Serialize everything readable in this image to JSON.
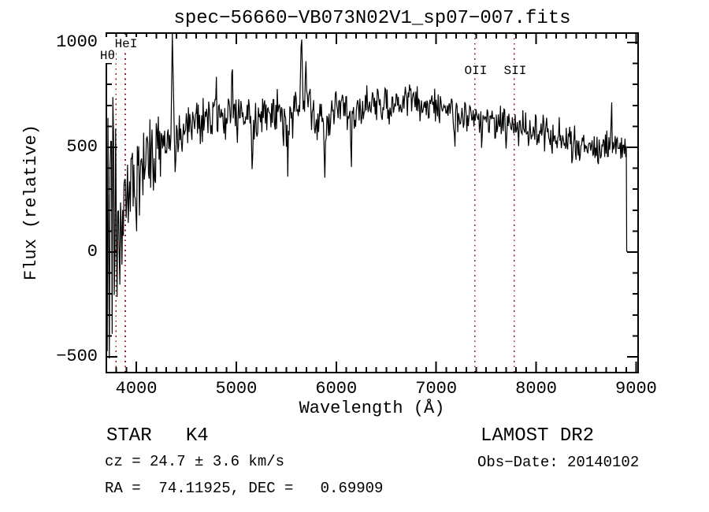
{
  "chart_data": {
    "type": "line",
    "title": "spec−56660−VB073N02V1_sp07−007.fits",
    "xlabel": "Wavelength (Å)",
    "ylabel": "Flux (relative)",
    "xlim": [
      3700,
      9020
    ],
    "ylim": [
      -575,
      1045
    ],
    "x_ticks": [
      4000,
      5000,
      6000,
      7000,
      8000,
      9000
    ],
    "x_tick_labels": [
      "4000",
      "5000",
      "6000",
      "7000",
      "8000",
      "9000"
    ],
    "x_minor_step": 100,
    "y_ticks": [
      1000,
      500,
      0,
      -500
    ],
    "y_tick_labels": [
      "1000",
      "500",
      "0",
      "−500"
    ],
    "y_minor_step": 100,
    "grid": false,
    "legend": null,
    "line_color": "#000000",
    "marker_line_color": "#942222",
    "marked_lines": [
      {
        "label": "HeI",
        "wavelength": 3889,
        "row": 0,
        "align": "center"
      },
      {
        "label": "Hθ",
        "wavelength": 3795,
        "row": 1,
        "align": "right"
      },
      {
        "label": "OII",
        "wavelength": 7388,
        "row": 2,
        "align": "center"
      },
      {
        "label": "SII",
        "wavelength": 7782,
        "row": 2,
        "align": "center"
      }
    ],
    "spectrum_synthesis": {
      "comment": "noisy stellar spectrum; continuum points [wavelength,flux] read off plot, noise_amp is local jitter half-range, features are narrow spikes/dips, tail is the final drop to zero flux",
      "noise_seed": 20140102,
      "wl_start": 3702,
      "wl_end": 8900,
      "wl_step": 7,
      "continuum": [
        [
          3700,
          160
        ],
        [
          3740,
          120
        ],
        [
          3790,
          170
        ],
        [
          3850,
          220
        ],
        [
          3900,
          265
        ],
        [
          3950,
          300
        ],
        [
          4000,
          335
        ],
        [
          4100,
          400
        ],
        [
          4200,
          460
        ],
        [
          4300,
          520
        ],
        [
          4400,
          565
        ],
        [
          4500,
          605
        ],
        [
          4600,
          645
        ],
        [
          4700,
          650
        ],
        [
          4800,
          638
        ],
        [
          4900,
          648
        ],
        [
          5000,
          650
        ],
        [
          5100,
          622
        ],
        [
          5200,
          615
        ],
        [
          5300,
          658
        ],
        [
          5400,
          660
        ],
        [
          5500,
          632
        ],
        [
          5600,
          678
        ],
        [
          5700,
          695
        ],
        [
          5800,
          632
        ],
        [
          5900,
          625
        ],
        [
          6000,
          688
        ],
        [
          6100,
          672
        ],
        [
          6200,
          668
        ],
        [
          6300,
          692
        ],
        [
          6400,
          703
        ],
        [
          6500,
          710
        ],
        [
          6600,
          720
        ],
        [
          6700,
          728
        ],
        [
          6800,
          715
        ],
        [
          6900,
          698
        ],
        [
          7000,
          688
        ],
        [
          7100,
          676
        ],
        [
          7200,
          664
        ],
        [
          7300,
          652
        ],
        [
          7400,
          652
        ],
        [
          7500,
          632
        ],
        [
          7600,
          618
        ],
        [
          7700,
          606
        ],
        [
          7800,
          596
        ],
        [
          7900,
          586
        ],
        [
          8000,
          576
        ],
        [
          8100,
          558
        ],
        [
          8200,
          548
        ],
        [
          8300,
          556
        ],
        [
          8400,
          532
        ],
        [
          8500,
          505
        ],
        [
          8600,
          488
        ],
        [
          8700,
          502
        ],
        [
          8750,
          518
        ],
        [
          8800,
          512
        ],
        [
          8900,
          502
        ]
      ],
      "noise_amp": [
        [
          3700,
          660
        ],
        [
          3740,
          630
        ],
        [
          3780,
          430
        ],
        [
          3830,
          340
        ],
        [
          3880,
          300
        ],
        [
          3950,
          265
        ],
        [
          4000,
          225
        ],
        [
          4100,
          185
        ],
        [
          4200,
          165
        ],
        [
          4300,
          152
        ],
        [
          4400,
          135
        ],
        [
          4500,
          115
        ],
        [
          4700,
          102
        ],
        [
          5000,
          96
        ],
        [
          5300,
          96
        ],
        [
          5600,
          108
        ],
        [
          5800,
          92
        ],
        [
          6000,
          84
        ],
        [
          6300,
          80
        ],
        [
          6600,
          76
        ],
        [
          7000,
          72
        ],
        [
          7400,
          70
        ],
        [
          7800,
          80
        ],
        [
          8200,
          82
        ],
        [
          8600,
          72
        ],
        [
          8900,
          62
        ]
      ],
      "features": [
        {
          "wl": 4362,
          "flux": 1100,
          "width": 16
        },
        {
          "wl": 4800,
          "flux": 860,
          "width": 9
        },
        {
          "wl": 4958,
          "flux": 935,
          "width": 10
        },
        {
          "wl": 5160,
          "flux": 345,
          "width": 12
        },
        {
          "wl": 5515,
          "flux": 360,
          "width": 11
        },
        {
          "wl": 5652,
          "flux": 1100,
          "width": 18
        },
        {
          "wl": 5695,
          "flux": 975,
          "width": 10
        },
        {
          "wl": 5885,
          "flux": 330,
          "width": 12
        },
        {
          "wl": 6150,
          "flux": 335,
          "width": 11
        },
        {
          "wl": 7186,
          "flux": 460,
          "width": 9
        },
        {
          "wl": 7455,
          "flux": 470,
          "width": 9
        },
        {
          "wl": 7700,
          "flux": 478,
          "width": 10
        },
        {
          "wl": 8360,
          "flux": 380,
          "width": 10
        },
        {
          "wl": 8755,
          "flux": 735,
          "width": 9
        }
      ],
      "tail": [
        [
          8902,
          505
        ],
        [
          8906,
          5
        ],
        [
          8912,
          8
        ]
      ]
    }
  },
  "annotations": {
    "class_line": "STAR   K4",
    "survey": "LAMOST DR2",
    "cz_line": "cz = 24.7 ± 3.6 km/s",
    "obs_date": "Obs−Date: 20140102",
    "ra_dec": "RA =  74.11925, DEC =   0.69909"
  }
}
